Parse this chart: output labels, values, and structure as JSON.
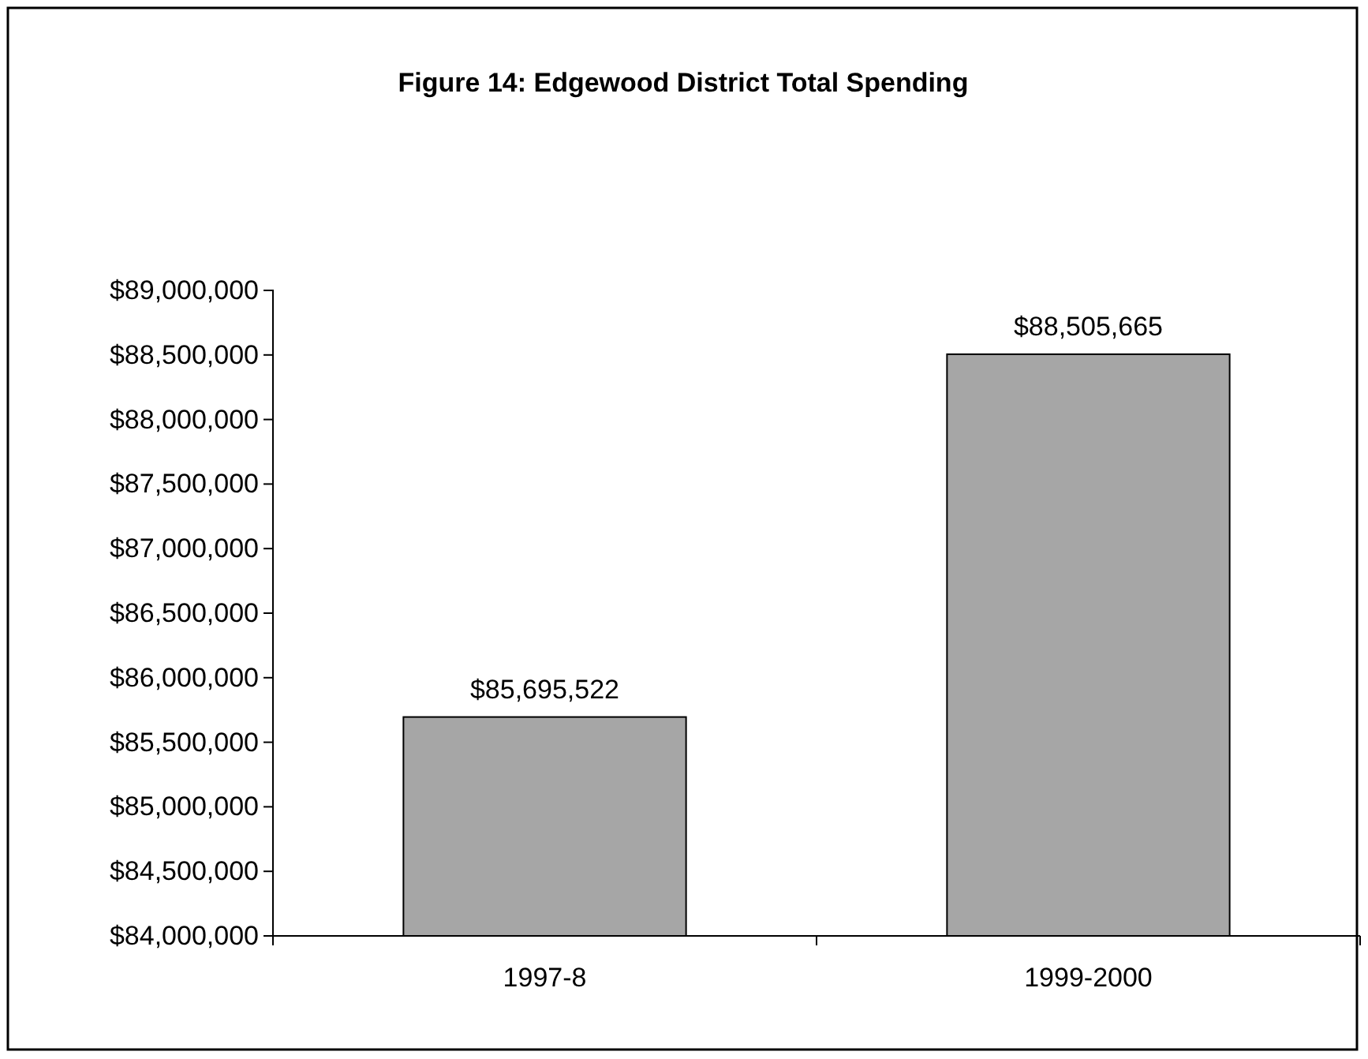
{
  "chart_data": {
    "type": "bar",
    "title": "Figure 14: Edgewood District Total Spending",
    "categories": [
      "1997-8",
      "1999-2000"
    ],
    "values": [
      85695522,
      88505665
    ],
    "value_labels": [
      "$85,695,522",
      "$88,505,665"
    ],
    "color": "#a6a6a6",
    "ylim": [
      84000000,
      89000000
    ],
    "yticks": [
      {
        "value": 84000000,
        "label": "$84,000,000"
      },
      {
        "value": 84500000,
        "label": "$84,500,000"
      },
      {
        "value": 85000000,
        "label": "$85,000,000"
      },
      {
        "value": 85500000,
        "label": "$85,500,000"
      },
      {
        "value": 86000000,
        "label": "$86,000,000"
      },
      {
        "value": 86500000,
        "label": "$86,500,000"
      },
      {
        "value": 87000000,
        "label": "$87,000,000"
      },
      {
        "value": 87500000,
        "label": "$87,500,000"
      },
      {
        "value": 88000000,
        "label": "$88,000,000"
      },
      {
        "value": 88500000,
        "label": "$88,500,000"
      },
      {
        "value": 89000000,
        "label": "$89,000,000"
      }
    ],
    "grid": false
  }
}
